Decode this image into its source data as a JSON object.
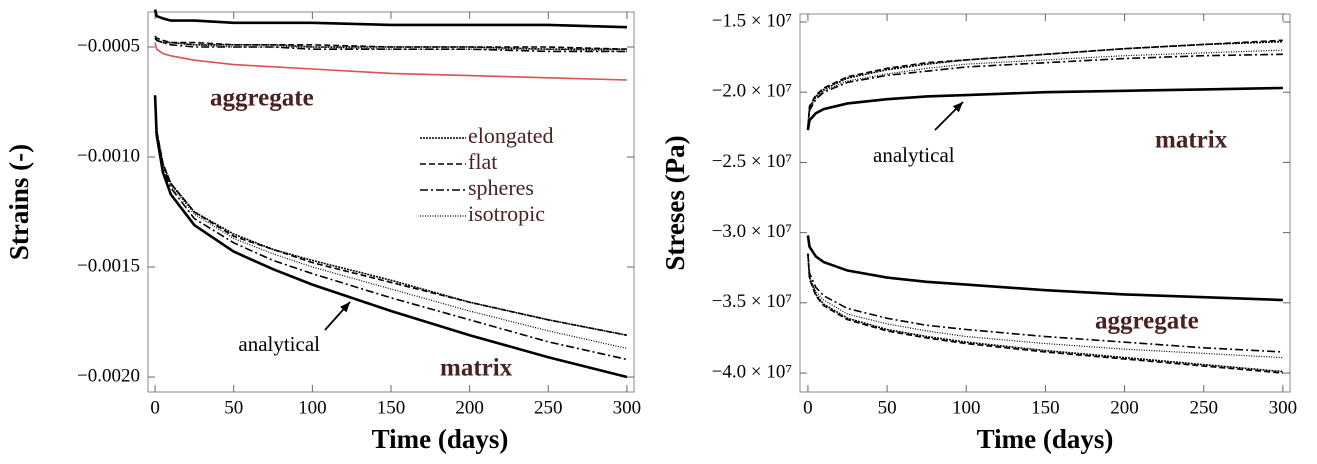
{
  "chart_data": [
    {
      "type": "line",
      "xlabel": "Time (days)",
      "ylabel": "Strains (-)",
      "x": [
        0,
        1,
        5,
        10,
        25,
        50,
        75,
        100,
        150,
        200,
        250,
        300
      ],
      "xlim": [
        -4.5,
        304.5
      ],
      "xticks": [
        0,
        50,
        100,
        150,
        200,
        250,
        300
      ],
      "ylim": [
        -0.002068,
        -0.000341
      ],
      "yticks": [
        {
          "value": -0.002,
          "label": "−0.0020"
        },
        {
          "value": -0.0015,
          "label": "−0.0015"
        },
        {
          "value": -0.001,
          "label": "−0.0010"
        },
        {
          "value": -0.0005,
          "label": "−0.0005"
        }
      ],
      "legend": "right",
      "annotations": [
        "aggregate",
        "matrix",
        "analytical"
      ],
      "series": [
        {
          "name": "elongated",
          "color": "#000000",
          "dash": "2,1",
          "aggregate": [
            -0.00046,
            -0.00047,
            -0.00048,
            -0.00048,
            -0.00049,
            -0.00049,
            -0.00049,
            -0.0005,
            -0.0005,
            -0.0005,
            -0.00051,
            -0.00051
          ],
          "matrix": [
            -0.00072,
            -0.00088,
            -0.00103,
            -0.00112,
            -0.00125,
            -0.00135,
            -0.00142,
            -0.00147,
            -0.00156,
            -0.00166,
            -0.00174,
            -0.00181
          ]
        },
        {
          "name": "flat",
          "color": "#000000",
          "dash": "6,3",
          "aggregate": [
            -0.00045,
            -0.00046,
            -0.00047,
            -0.00048,
            -0.00048,
            -0.00049,
            -0.00049,
            -0.00049,
            -0.0005,
            -0.0005,
            -0.0005,
            -0.00051
          ],
          "matrix": [
            -0.00072,
            -0.00088,
            -0.00103,
            -0.00112,
            -0.00125,
            -0.00136,
            -0.00142,
            -0.00148,
            -0.00157,
            -0.00166,
            -0.00174,
            -0.00181
          ]
        },
        {
          "name": "spheres",
          "color": "#000000",
          "dash": "8,3,2,3",
          "aggregate": [
            -0.00046,
            -0.00047,
            -0.00048,
            -0.00049,
            -0.0005,
            -0.0005,
            -0.0005,
            -0.00051,
            -0.00051,
            -0.00051,
            -0.00052,
            -0.00052
          ],
          "matrix": [
            -0.00072,
            -0.00089,
            -0.00105,
            -0.00114,
            -0.00128,
            -0.00139,
            -0.00147,
            -0.00153,
            -0.00164,
            -0.00174,
            -0.00184,
            -0.00192
          ]
        },
        {
          "name": "isotropic",
          "color": "#000000",
          "dash": "1,1.5",
          "aggregate": [
            -0.00046,
            -0.00047,
            -0.00048,
            -0.00048,
            -0.00049,
            -0.0005,
            -0.0005,
            -0.0005,
            -0.00051,
            -0.00051,
            -0.00051,
            -0.00052
          ],
          "matrix": [
            -0.00072,
            -0.00088,
            -0.00104,
            -0.00113,
            -0.00126,
            -0.00137,
            -0.00144,
            -0.0015,
            -0.0016,
            -0.0017,
            -0.00179,
            -0.00187
          ]
        },
        {
          "color": "#000000",
          "dash": "none",
          "aggregate": [
            -0.00033,
            -0.00036,
            -0.00037,
            -0.00038,
            -0.00038,
            -0.00039,
            -0.00039,
            -0.00039,
            -0.0004,
            -0.0004,
            -0.0004,
            -0.00041
          ],
          "matrix": [
            -0.00072,
            -0.0009,
            -0.00107,
            -0.00117,
            -0.00131,
            -0.00143,
            -0.00151,
            -0.00158,
            -0.0017,
            -0.00181,
            -0.00191,
            -0.002
          ]
        },
        {
          "color": "#e05050",
          "dash": "none",
          "aggregate": [
            -0.00048,
            -0.00051,
            -0.00053,
            -0.00054,
            -0.00056,
            -0.00058,
            -0.00059,
            -0.0006,
            -0.00062,
            -0.00063,
            -0.00064,
            -0.00065
          ]
        }
      ]
    },
    {
      "type": "line",
      "xlabel": "Time (days)",
      "ylabel": "Streses (Pa)",
      "x": [
        0,
        1,
        5,
        10,
        25,
        50,
        75,
        100,
        150,
        200,
        250,
        300
      ],
      "xlim": [
        -5,
        304.5
      ],
      "xticks": [
        0,
        50,
        100,
        150,
        200,
        250,
        300
      ],
      "ylim": [
        -41350000,
        -14430000
      ],
      "yticks": [
        {
          "value": -40000000,
          "label": "−4.0 × 10⁷"
        },
        {
          "value": -35000000,
          "label": "−3.5 × 10⁷"
        },
        {
          "value": -30000000,
          "label": "−3.0 × 10⁷"
        },
        {
          "value": -25000000,
          "label": "−2.5 × 10⁷"
        },
        {
          "value": -20000000,
          "label": "−2.0 × 10⁷"
        },
        {
          "value": -15000000,
          "label": "−1.5 × 10⁷"
        }
      ],
      "annotations": [
        "aggregate",
        "matrix",
        "analytical"
      ],
      "series": [
        {
          "color": "#000000",
          "dash": "2,1",
          "aggregate": [
            -31500000,
            -33200000,
            -34400000,
            -35100000,
            -36100000,
            -36900000,
            -37400000,
            -37800000,
            -38400000,
            -38900000,
            -39400000,
            -39900000
          ],
          "matrix": [
            -22500000,
            -21100000,
            -20300000,
            -19800000,
            -19000000,
            -18400000,
            -18000000,
            -17700000,
            -17300000,
            -16900000,
            -16600000,
            -16400000
          ]
        },
        {
          "color": "#000000",
          "dash": "6,3",
          "aggregate": [
            -31500000,
            -33300000,
            -34500000,
            -35200000,
            -36200000,
            -37000000,
            -37500000,
            -37900000,
            -38500000,
            -39000000,
            -39500000,
            -40000000
          ],
          "matrix": [
            -22500000,
            -21000000,
            -20200000,
            -19700000,
            -18900000,
            -18300000,
            -17900000,
            -17700000,
            -17300000,
            -16900000,
            -16600000,
            -16300000
          ]
        },
        {
          "color": "#000000",
          "dash": "8,3,2,3",
          "aggregate": [
            -31500000,
            -32900000,
            -33900000,
            -34500000,
            -35400000,
            -36100000,
            -36600000,
            -36900000,
            -37400000,
            -37800000,
            -38200000,
            -38500000
          ],
          "matrix": [
            -22500000,
            -21300000,
            -20500000,
            -20000000,
            -19300000,
            -18800000,
            -18500000,
            -18200000,
            -17900000,
            -17600000,
            -17400000,
            -17300000
          ]
        },
        {
          "color": "#000000",
          "dash": "1,1.5",
          "aggregate": [
            -31500000,
            -33100000,
            -34200000,
            -34800000,
            -35800000,
            -36500000,
            -37000000,
            -37400000,
            -37900000,
            -38300000,
            -38600000,
            -38900000
          ],
          "matrix": [
            -22500000,
            -21200000,
            -20400000,
            -19900000,
            -19200000,
            -18700000,
            -18300000,
            -18000000,
            -17700000,
            -17400000,
            -17200000,
            -17000000
          ]
        },
        {
          "color": "#000000",
          "dash": "none",
          "aggregate": [
            -30200000,
            -31000000,
            -31700000,
            -32100000,
            -32700000,
            -33200000,
            -33500000,
            -33700000,
            -34100000,
            -34400000,
            -34600000,
            -34800000
          ],
          "matrix": [
            -22700000,
            -22000000,
            -21500000,
            -21200000,
            -20800000,
            -20500000,
            -20300000,
            -20200000,
            -20000000,
            -19900000,
            -19800000,
            -19700000
          ]
        }
      ]
    }
  ]
}
